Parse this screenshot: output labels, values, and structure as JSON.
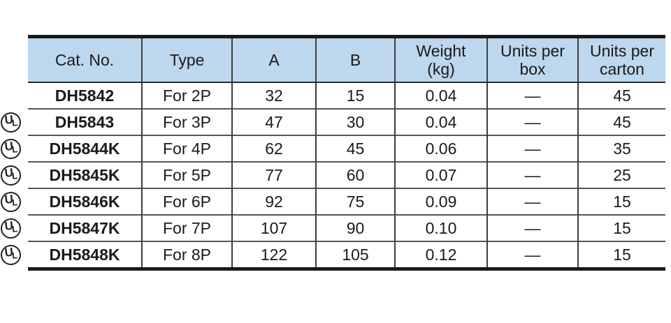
{
  "table": {
    "headers": [
      "Cat. No.",
      "Type",
      "A",
      "B",
      "Weight\n(kg)",
      "Units per\nbox",
      "Units per\ncarton"
    ],
    "rows": [
      {
        "ul_mark": false,
        "cells": [
          "DH5842",
          "For 2P",
          "32",
          "15",
          "0.04",
          "—",
          "45"
        ]
      },
      {
        "ul_mark": true,
        "cells": [
          "DH5843",
          "For 3P",
          "47",
          "30",
          "0.04",
          "—",
          "45"
        ]
      },
      {
        "ul_mark": true,
        "cells": [
          "DH5844K",
          "For 4P",
          "62",
          "45",
          "0.06",
          "—",
          "35"
        ]
      },
      {
        "ul_mark": true,
        "cells": [
          "DH5845K",
          "For 5P",
          "77",
          "60",
          "0.07",
          "—",
          "25"
        ]
      },
      {
        "ul_mark": true,
        "cells": [
          "DH5846K",
          "For 6P",
          "92",
          "75",
          "0.09",
          "—",
          "15"
        ]
      },
      {
        "ul_mark": true,
        "cells": [
          "DH5847K",
          "For 7P",
          "107",
          "90",
          "0.10",
          "—",
          "15"
        ]
      },
      {
        "ul_mark": true,
        "cells": [
          "DH5848K",
          "For 8P",
          "122",
          "105",
          "0.12",
          "—",
          "15"
        ]
      }
    ]
  },
  "icons": {
    "ul": {
      "letters": {
        "u": "U",
        "l": "L"
      }
    }
  },
  "colors": {
    "header_bg": "#bdd7ee",
    "border_thick": "#1a1a1a",
    "border_thin": "#3d3d3d",
    "text": "#1a1a1a"
  }
}
